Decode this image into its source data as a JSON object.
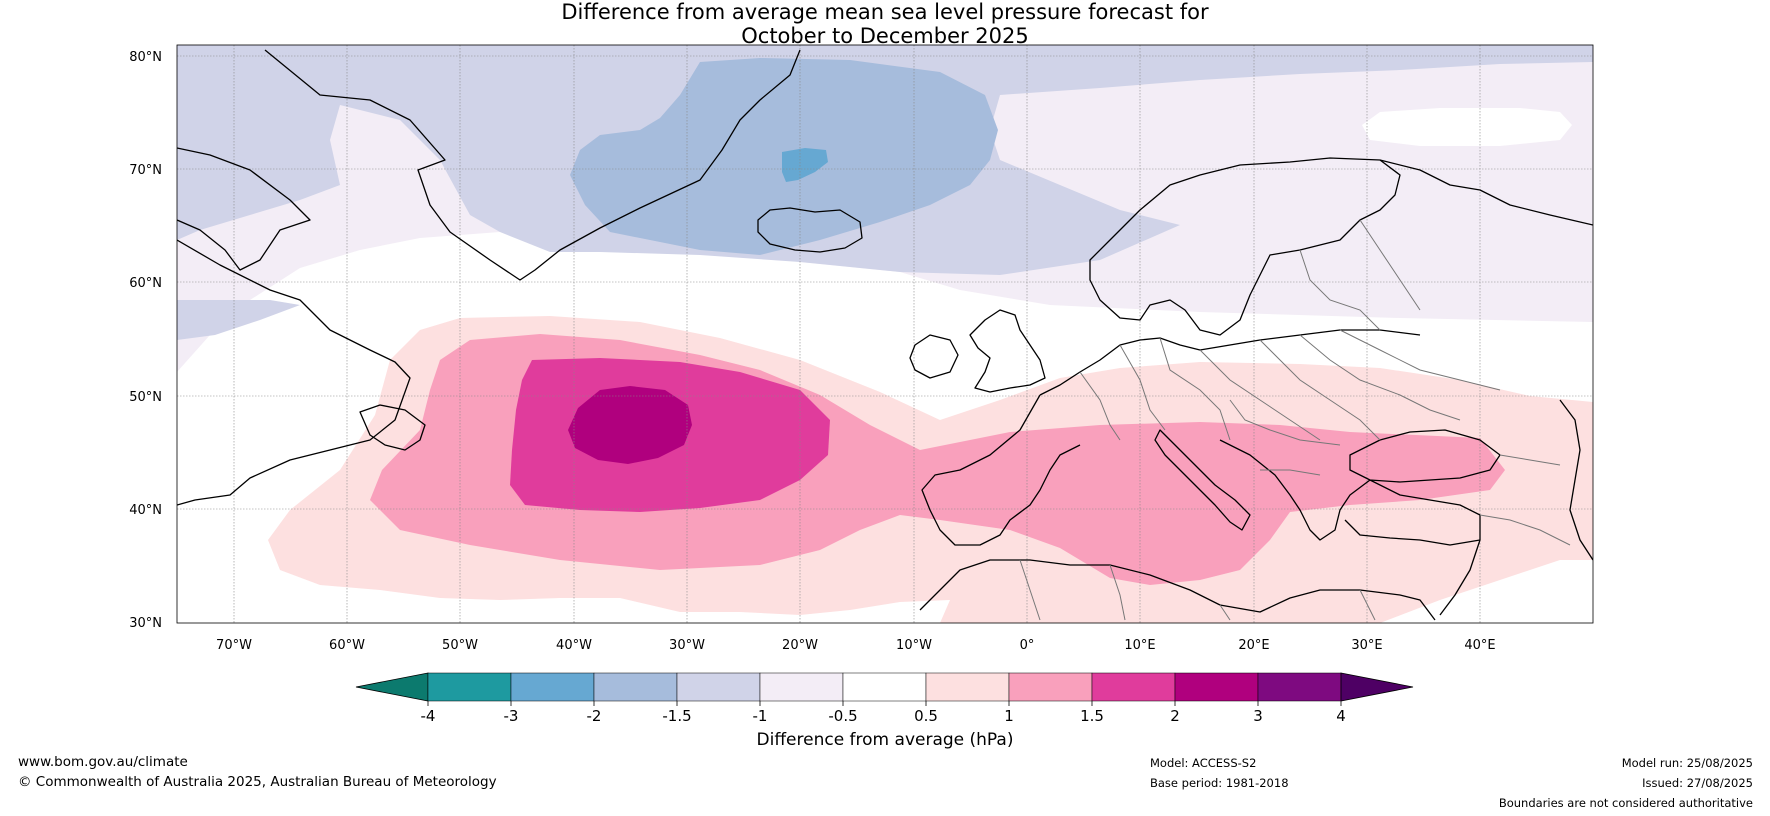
{
  "title": {
    "line1": "Difference from average mean sea level pressure forecast for",
    "line2": "October to December 2025"
  },
  "map": {
    "lat_labels": [
      "80°N",
      "70°N",
      "60°N",
      "50°N",
      "40°N",
      "30°N"
    ],
    "lon_labels": [
      "70°W",
      "60°W",
      "50°W",
      "40°W",
      "30°W",
      "20°W",
      "10°W",
      "0°",
      "10°E",
      "20°E",
      "30°E",
      "40°E"
    ],
    "extent": {
      "lon": [
        -75,
        50
      ],
      "lat": [
        30,
        81
      ]
    }
  },
  "colorbar": {
    "title": "Difference from average (hPa)",
    "tick_labels": [
      "-4",
      "-3",
      "-2",
      "-1.5",
      "-1",
      "-0.5",
      "0.5",
      "1",
      "1.5",
      "2",
      "3",
      "4"
    ],
    "colors": [
      "#0c7a6e",
      "#1e9aa0",
      "#66a8d2",
      "#a6bcdc",
      "#d0d3e8",
      "#f3edf6",
      "#ffffff",
      "#fde0e0",
      "#f9a0bc",
      "#e03c9c",
      "#b0007e",
      "#7e0a80",
      "#4e0064"
    ]
  },
  "footer": {
    "website": "www.bom.gov.au/climate",
    "copyright": "© Commonwealth of Australia 2025, Australian Bureau of Meteorology",
    "model": "Model: ACCESS-S2",
    "base_period": "Base period: 1981-2018",
    "model_run": "Model run: 25/08/2025",
    "issued": "Issued: 27/08/2025",
    "disclaimer": "Boundaries are not considered authoritative"
  }
}
